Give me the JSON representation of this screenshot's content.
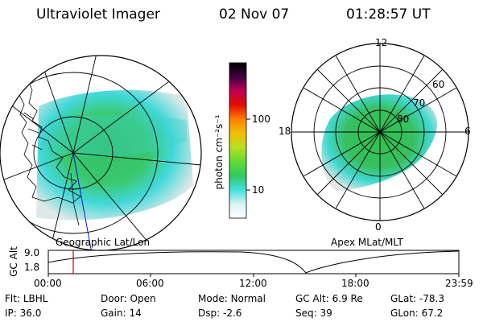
{
  "header": {
    "instrument": "Ultraviolet Imager",
    "date": "02 Nov 07",
    "time": "01:28:57 UT"
  },
  "geo_panel": {
    "caption": "Geographic Lat/Lon"
  },
  "mag_panel": {
    "caption": "Apex MLat/MLT",
    "mlt_labels": [
      "12",
      "18",
      "6",
      "0"
    ],
    "lat_labels": [
      "60",
      "70",
      "80"
    ]
  },
  "colorbar": {
    "unit_label": "photon cm⁻²s⁻¹",
    "ticks": [
      "100",
      "10"
    ],
    "scale": "log",
    "colors": [
      "#ffffff",
      "#d8f4f4",
      "#40e0e0",
      "#30c860",
      "#60dc30",
      "#b8e020",
      "#f0c000",
      "#ff8000",
      "#e01000",
      "#c00050",
      "#400040",
      "#000000"
    ]
  },
  "altitude_strip": {
    "ylabel": "GC Alt",
    "yticks": [
      "9.0",
      "1.8"
    ],
    "xticks": [
      "00:00",
      "06:00",
      "12:00",
      "18:00",
      "23:59"
    ],
    "cursor_color": "#cc0000"
  },
  "status": {
    "row1": [
      {
        "label": "Flt:",
        "value": "LBHL"
      },
      {
        "label": "Door:",
        "value": "Open"
      },
      {
        "label": "Mode:",
        "value": "Normal"
      },
      {
        "label": "GC Alt:",
        "value": "6.9 Re"
      },
      {
        "label": "GLat:",
        "value": "-78.3"
      }
    ],
    "row2": [
      {
        "label": "IP:",
        "value": "36.0"
      },
      {
        "label": "Gain:",
        "value": "14"
      },
      {
        "label": "Dsp:",
        "value": "-2.6"
      },
      {
        "label": "Seq:",
        "value": "39"
      },
      {
        "label": "GLon:",
        "value": "67.2"
      }
    ]
  }
}
